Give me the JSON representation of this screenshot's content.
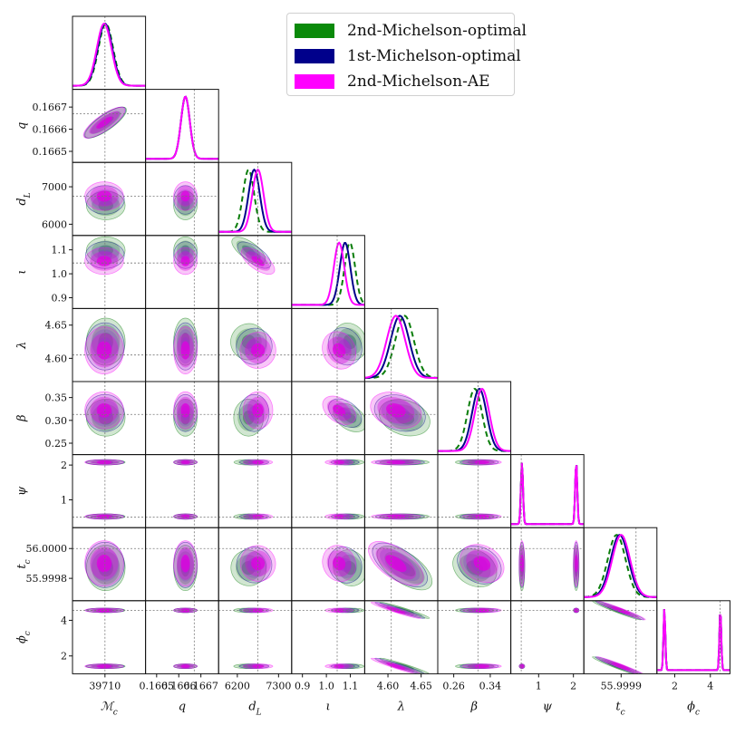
{
  "chart_data": {
    "type": "corner",
    "title": "",
    "series": [
      {
        "name": "2nd-Michelson-optimal",
        "color": "#0a7d0a",
        "fill": "#3c9a3c",
        "linestyle": "dashed"
      },
      {
        "name": "1st-Michelson-optimal",
        "color": "#00008b",
        "fill": "#7a7ad0",
        "linestyle": "solid"
      },
      {
        "name": "2nd-Michelson-AE",
        "color": "#ff00ff",
        "fill": "#e833e8",
        "linestyle": "solid"
      }
    ],
    "parameters": [
      {
        "key": "Mc",
        "label": "ℳc",
        "sub": "c",
        "base": "ℳ",
        "truth": 39710.0,
        "range": [
          39690.0,
          39735.0
        ],
        "ticks": [
          {
            "v": 39710,
            "t": "39710"
          }
        ],
        "series_means": [
          39710.5,
          39710.0,
          39709.5
        ],
        "series_sigmas": [
          4.5,
          4.5,
          4.5
        ]
      },
      {
        "key": "q",
        "label": "q",
        "sub": "",
        "base": "q",
        "truth": 0.16667,
        "range": [
          0.16645,
          0.16678
        ],
        "ticks": [
          {
            "v": 0.1665,
            "t": "0.1665"
          },
          {
            "v": 0.1666,
            "t": "0.1666"
          },
          {
            "v": 0.1667,
            "t": "0.1667"
          }
        ],
        "series_means": [
          0.16663,
          0.16663,
          0.16663
        ],
        "series_sigmas": [
          2e-05,
          2e-05,
          2e-05
        ]
      },
      {
        "key": "dL",
        "label": "dL",
        "sub": "L",
        "base": "d",
        "truth": 6750.0,
        "range": [
          5700.0,
          7650.0
        ],
        "ticks": [
          {
            "v": 6000,
            "t": "6000"
          },
          {
            "v": 7000,
            "t": "7000"
          }
        ],
        "xticks": [
          {
            "v": 6200,
            "t": "6200"
          },
          {
            "v": 7300,
            "t": "7300"
          }
        ],
        "series_means": [
          6500.0,
          6650.0,
          6750.0
        ],
        "series_sigmas": [
          150.0,
          150.0,
          150.0
        ]
      },
      {
        "key": "iota",
        "label": "ι",
        "sub": "",
        "base": "ι",
        "truth": 1.045,
        "range": [
          0.855,
          1.16
        ],
        "ticks": [
          {
            "v": 0.9,
            "t": "0.9"
          },
          {
            "v": 1.0,
            "t": "1.0"
          },
          {
            "v": 1.1,
            "t": "1.1"
          }
        ],
        "xticks": [
          {
            "v": 0.9,
            "t": "0.9"
          },
          {
            "v": 1.0,
            "t": "1.0"
          },
          {
            "v": 1.1,
            "t": "1.1"
          }
        ],
        "series_means": [
          1.098,
          1.078,
          1.053
        ],
        "series_sigmas": [
          0.022,
          0.022,
          0.022
        ]
      },
      {
        "key": "lambda",
        "label": "λ",
        "sub": "",
        "base": "λ",
        "truth": 4.605,
        "range": [
          4.565,
          4.675
        ],
        "ticks": [
          {
            "v": 4.6,
            "t": "4.60"
          },
          {
            "v": 4.65,
            "t": "4.65"
          }
        ],
        "series_means": [
          4.625,
          4.618,
          4.612
        ],
        "series_sigmas": [
          0.014,
          0.014,
          0.014
        ]
      },
      {
        "key": "beta",
        "label": "β",
        "sub": "",
        "base": "β",
        "truth": 0.313,
        "range": [
          0.225,
          0.385
        ],
        "ticks": [
          {
            "v": 0.25,
            "t": "0.25"
          },
          {
            "v": 0.3,
            "t": "0.30"
          },
          {
            "v": 0.35,
            "t": "0.35"
          }
        ],
        "xticks": [
          {
            "v": 0.26,
            "t": "0.26"
          },
          {
            "v": 0.34,
            "t": "0.34"
          }
        ],
        "series_means": [
          0.306,
          0.316,
          0.322
        ],
        "series_sigmas": [
          0.016,
          0.016,
          0.016
        ]
      },
      {
        "key": "psi",
        "label": "ψ",
        "sub": "",
        "base": "ψ",
        "truth": 0.5,
        "range": [
          0.2,
          2.3
        ],
        "ticks": [
          {
            "v": 1,
            "t": "1"
          },
          {
            "v": 2,
            "t": "2"
          }
        ],
        "modes": [
          0.52,
          2.08
        ],
        "series_means": [
          0.52,
          0.52,
          0.52
        ],
        "series_sigmas": [
          0.03,
          0.03,
          0.03
        ]
      },
      {
        "key": "tc",
        "label": "tc",
        "sub": "c",
        "base": "t",
        "truth": 56.0,
        "range": [
          55.99965,
          56.00014
        ],
        "ticks": [
          {
            "v": 55.9998,
            "t": "55.9998"
          },
          {
            "v": 56.0,
            "t": "56.0000"
          }
        ],
        "xticks": [
          {
            "v": 55.9999,
            "t": "55.9999"
          }
        ],
        "series_means": [
          55.99987,
          55.99989,
          55.9999
        ],
        "series_sigmas": [
          6e-05,
          6e-05,
          6e-05
        ]
      },
      {
        "key": "phic",
        "label": "ϕc",
        "sub": "c",
        "base": "ϕ",
        "truth": 4.55,
        "range": [
          1.0,
          5.1
        ],
        "ticks": [
          {
            "v": 2,
            "t": "2"
          },
          {
            "v": 4,
            "t": "4"
          }
        ],
        "xticks": [
          {
            "v": 2,
            "t": "2"
          },
          {
            "v": 4,
            "t": "4"
          }
        ],
        "modes": [
          1.42,
          4.56
        ],
        "series_means": [
          4.56,
          4.56,
          4.56
        ],
        "series_sigmas": [
          0.05,
          0.05,
          0.05
        ]
      }
    ],
    "grid": false,
    "legend_position": "top-right"
  }
}
